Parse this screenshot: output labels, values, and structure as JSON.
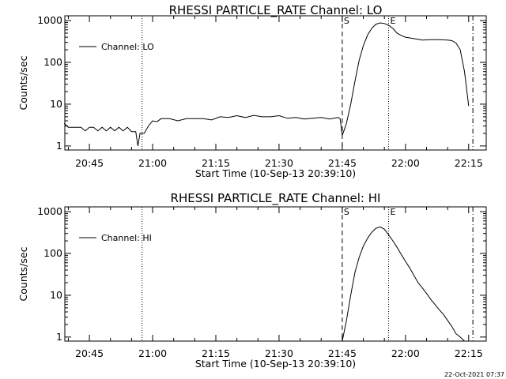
{
  "chart_data": [
    {
      "type": "line",
      "title": "RHESSI PARTICLE_RATE Channel: LO",
      "xlabel": "Start Time (10-Sep-13 20:39:10)",
      "ylabel": "Counts/sec",
      "yscale": "log",
      "ylim": [
        0.8,
        1300
      ],
      "yticks": [
        {
          "v": 1,
          "label": "1"
        },
        {
          "v": 10,
          "label": "10"
        },
        {
          "v": 100,
          "label": "100"
        },
        {
          "v": 1000,
          "label": "1000"
        }
      ],
      "xlim": [
        "20:39:10",
        "22:19:10"
      ],
      "xticks": [
        "20:45",
        "21:00",
        "21:15",
        "21:30",
        "21:45",
        "22:00",
        "22:15"
      ],
      "series": [
        {
          "name": "Channel: LO",
          "x": [
            "20:39",
            "20:40",
            "20:41",
            "20:42",
            "20:43",
            "20:44",
            "20:45",
            "20:46",
            "20:47",
            "20:48",
            "20:49",
            "20:50",
            "20:51",
            "20:52",
            "20:53",
            "20:54",
            "20:55",
            "20:56",
            "20:56.5",
            "20:57",
            "20:57.5",
            "20:58",
            "20:59",
            "21:00",
            "21:01",
            "21:02",
            "21:04",
            "21:06",
            "21:08",
            "21:10",
            "21:12",
            "21:14",
            "21:16",
            "21:18",
            "21:20",
            "21:22",
            "21:24",
            "21:26",
            "21:28",
            "21:30",
            "21:32",
            "21:34",
            "21:36",
            "21:38",
            "21:40",
            "21:42",
            "21:44",
            "21:44.5",
            "21:45",
            "21:45.5",
            "21:46",
            "21:47",
            "21:48",
            "21:49",
            "21:50",
            "21:51",
            "21:52",
            "21:53",
            "21:54",
            "21:55",
            "21:56",
            "21:57",
            "21:58",
            "21:59",
            "22:00",
            "22:02",
            "22:04",
            "22:06",
            "22:08",
            "22:10",
            "22:11",
            "22:12",
            "22:13",
            "22:14",
            "22:15"
          ],
          "y": [
            3.5,
            2.8,
            2.8,
            2.8,
            2.8,
            2.3,
            2.8,
            2.8,
            2.3,
            2.8,
            2.3,
            2.8,
            2.3,
            2.8,
            2.3,
            2.8,
            2.2,
            2.2,
            1.0,
            2.0,
            2.0,
            2.0,
            3.0,
            4.0,
            3.8,
            4.5,
            4.5,
            4.0,
            4.5,
            4.5,
            4.5,
            4.2,
            5.0,
            4.8,
            5.3,
            4.8,
            5.4,
            5.0,
            5.0,
            5.3,
            4.6,
            4.8,
            4.4,
            4.6,
            4.8,
            4.4,
            4.8,
            4.5,
            1.8,
            2.5,
            3.5,
            10,
            35,
            110,
            250,
            450,
            650,
            820,
            880,
            850,
            770,
            650,
            500,
            440,
            400,
            370,
            340,
            350,
            350,
            340,
            330,
            290,
            200,
            60,
            9
          ]
        }
      ],
      "markers": [
        {
          "x": "20:57.5",
          "style": "dotted",
          "label": ""
        },
        {
          "x": "21:45",
          "style": "dashed",
          "label": "S"
        },
        {
          "x": "21:56",
          "style": "dotted",
          "label": "E"
        },
        {
          "x": "22:16",
          "style": "dashdot",
          "label": ""
        }
      ],
      "legend": {
        "position": "top-left"
      }
    },
    {
      "type": "line",
      "title": "RHESSI PARTICLE_RATE Channel: HI",
      "xlabel": "Start Time (10-Sep-13 20:39:10)",
      "ylabel": "Counts/sec",
      "yscale": "log",
      "ylim": [
        0.8,
        1300
      ],
      "yticks": [
        {
          "v": 1,
          "label": "1"
        },
        {
          "v": 10,
          "label": "10"
        },
        {
          "v": 100,
          "label": "100"
        },
        {
          "v": 1000,
          "label": "1000"
        }
      ],
      "xlim": [
        "20:39:10",
        "22:19:10"
      ],
      "xticks": [
        "20:45",
        "21:00",
        "21:15",
        "21:30",
        "21:45",
        "22:00",
        "22:15"
      ],
      "series": [
        {
          "name": "Channel: HI",
          "x": [
            "21:45",
            "21:46",
            "21:47",
            "21:48",
            "21:49",
            "21:50",
            "21:51",
            "21:52",
            "21:53",
            "21:54",
            "21:55",
            "21:56",
            "21:57",
            "21:58",
            "21:59",
            "22:00",
            "22:01",
            "22:02",
            "22:03",
            "22:04",
            "22:05",
            "22:06",
            "22:07",
            "22:08",
            "22:09",
            "22:10",
            "22:11",
            "22:12",
            "22:13",
            "22:14"
          ],
          "y": [
            0.7,
            2.5,
            10,
            35,
            80,
            150,
            230,
            320,
            400,
            430,
            380,
            280,
            200,
            140,
            95,
            65,
            45,
            30,
            20,
            15,
            11,
            8,
            6,
            4.5,
            3.5,
            2.5,
            1.8,
            1.2,
            1.0,
            0.7
          ]
        }
      ],
      "markers": [
        {
          "x": "20:57.5",
          "style": "dotted",
          "label": ""
        },
        {
          "x": "21:45",
          "style": "dashed",
          "label": "S"
        },
        {
          "x": "21:56",
          "style": "dotted",
          "label": "E"
        },
        {
          "x": "22:16",
          "style": "dashdot",
          "label": ""
        }
      ],
      "legend": {
        "position": "top-left"
      }
    }
  ],
  "footer": {
    "timestamp": "22-Oct-2021 07:37"
  }
}
